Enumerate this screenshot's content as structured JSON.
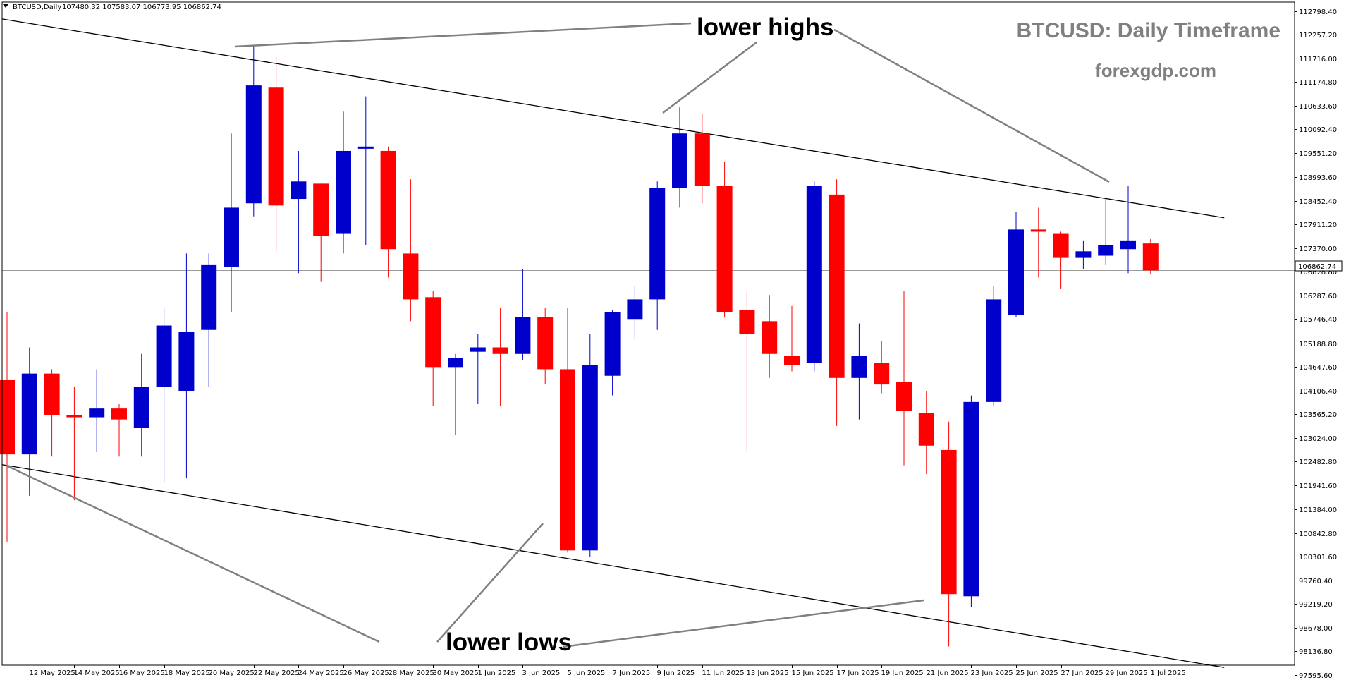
{
  "header": {
    "symbol": "BTCUSD,Daily",
    "ohlc": "107480.32 107583.07 106773.95 106862.74"
  },
  "watermark": {
    "title": "BTCUSD: Daily Timeframe",
    "site": "forexgdp.com",
    "color": "#808080"
  },
  "annotations": {
    "top": "lower highs",
    "bottom": "lower lows"
  },
  "current_price_label": "106862.74",
  "colors": {
    "bull": "#0000cc",
    "bear": "#ff0000",
    "trendline": "#000000",
    "pointer": "#808080"
  },
  "chart_data": {
    "type": "candlestick",
    "title": "BTCUSD: Daily Timeframe",
    "ylim": [
      97595.2,
      112798.4
    ],
    "y_ticks": [
      112798.4,
      112257.2,
      111716.0,
      111174.8,
      110633.6,
      110092.4,
      109551.2,
      108993.6,
      108452.4,
      107911.2,
      107370.0,
      106828.8,
      106287.6,
      105746.4,
      105188.8,
      104647.6,
      104106.4,
      103565.2,
      103024.0,
      102482.8,
      101941.6,
      101384.0,
      100842.8,
      100301.6,
      99760.4,
      99219.2,
      98678.0,
      98136.8,
      97595.6
    ],
    "x_tick_labels": [
      "12 May 2025",
      "14 May 2025",
      "16 May 2025",
      "18 May 2025",
      "20 May 2025",
      "22 May 2025",
      "24 May 2025",
      "26 May 2025",
      "28 May 2025",
      "30 May 2025",
      "1 Jun 2025",
      "3 Jun 2025",
      "5 Jun 2025",
      "7 Jun 2025",
      "9 Jun 2025",
      "11 Jun 2025",
      "13 Jun 2025",
      "15 Jun 2025",
      "17 Jun 2025",
      "19 Jun 2025",
      "21 Jun 2025",
      "23 Jun 2025",
      "25 Jun 2025",
      "27 Jun 2025",
      "29 Jun 2025",
      "1 Jul 2025"
    ],
    "current_price": 106862.74,
    "candles": [
      {
        "date": "11 May 2025",
        "o": 104350,
        "h": 105900,
        "l": 100650,
        "c": 102650
      },
      {
        "date": "12 May 2025",
        "o": 102650,
        "h": 105100,
        "l": 101700,
        "c": 104500
      },
      {
        "date": "13 May 2025",
        "o": 104500,
        "h": 104600,
        "l": 102600,
        "c": 103550
      },
      {
        "date": "14 May 2025",
        "o": 103550,
        "h": 104200,
        "l": 101600,
        "c": 103500
      },
      {
        "date": "15 May 2025",
        "o": 103500,
        "h": 104600,
        "l": 102700,
        "c": 103700
      },
      {
        "date": "16 May 2025",
        "o": 103700,
        "h": 103800,
        "l": 102600,
        "c": 103450
      },
      {
        "date": "17 May 2025",
        "o": 103250,
        "h": 104950,
        "l": 102600,
        "c": 104200
      },
      {
        "date": "18 May 2025",
        "o": 104200,
        "h": 106000,
        "l": 102000,
        "c": 105600
      },
      {
        "date": "19 May 2025",
        "o": 104100,
        "h": 107250,
        "l": 102100,
        "c": 105450
      },
      {
        "date": "20 May 2025",
        "o": 105500,
        "h": 107250,
        "l": 104200,
        "c": 107000
      },
      {
        "date": "21 May 2025",
        "o": 106950,
        "h": 110000,
        "l": 105900,
        "c": 108300
      },
      {
        "date": "22 May 2025",
        "o": 108400,
        "h": 112000,
        "l": 108100,
        "c": 111100
      },
      {
        "date": "23 May 2025",
        "o": 111050,
        "h": 111750,
        "l": 107300,
        "c": 108350
      },
      {
        "date": "24 May 2025",
        "o": 108500,
        "h": 109600,
        "l": 106800,
        "c": 108900
      },
      {
        "date": "25 May 2025",
        "o": 108850,
        "h": 108850,
        "l": 106600,
        "c": 107650
      },
      {
        "date": "26 May 2025",
        "o": 107700,
        "h": 110500,
        "l": 107250,
        "c": 109600
      },
      {
        "date": "27 May 2025",
        "o": 109650,
        "h": 110850,
        "l": 107450,
        "c": 109700
      },
      {
        "date": "28 May 2025",
        "o": 109600,
        "h": 109700,
        "l": 106700,
        "c": 107350
      },
      {
        "date": "29 May 2025",
        "o": 107250,
        "h": 108950,
        "l": 105700,
        "c": 106200
      },
      {
        "date": "30 May 2025",
        "o": 106250,
        "h": 106400,
        "l": 103750,
        "c": 104650
      },
      {
        "date": "31 May 2025",
        "o": 104650,
        "h": 104950,
        "l": 103100,
        "c": 104850
      },
      {
        "date": "1 Jun 2025",
        "o": 105000,
        "h": 105400,
        "l": 103800,
        "c": 105100
      },
      {
        "date": "2 Jun 2025",
        "o": 105100,
        "h": 106000,
        "l": 103750,
        "c": 104950
      },
      {
        "date": "3 Jun 2025",
        "o": 104950,
        "h": 106900,
        "l": 104800,
        "c": 105800
      },
      {
        "date": "4 Jun 2025",
        "o": 105800,
        "h": 106000,
        "l": 104250,
        "c": 104600
      },
      {
        "date": "5 Jun 2025",
        "o": 104600,
        "h": 106000,
        "l": 100400,
        "c": 100450
      },
      {
        "date": "6 Jun 2025",
        "o": 100450,
        "h": 105400,
        "l": 100300,
        "c": 104700
      },
      {
        "date": "7 Jun 2025",
        "o": 104450,
        "h": 105950,
        "l": 104000,
        "c": 105900
      },
      {
        "date": "8 Jun 2025",
        "o": 105750,
        "h": 106500,
        "l": 105300,
        "c": 106200
      },
      {
        "date": "9 Jun 2025",
        "o": 106200,
        "h": 108900,
        "l": 105500,
        "c": 108750
      },
      {
        "date": "10 Jun 2025",
        "o": 108750,
        "h": 110600,
        "l": 108300,
        "c": 110000
      },
      {
        "date": "11 Jun 2025",
        "o": 110000,
        "h": 110450,
        "l": 108400,
        "c": 108800
      },
      {
        "date": "12 Jun 2025",
        "o": 108800,
        "h": 109350,
        "l": 105800,
        "c": 105900
      },
      {
        "date": "13 Jun 2025",
        "o": 105950,
        "h": 106400,
        "l": 102700,
        "c": 105400
      },
      {
        "date": "14 Jun 2025",
        "o": 105700,
        "h": 106300,
        "l": 104400,
        "c": 104950
      },
      {
        "date": "15 Jun 2025",
        "o": 104900,
        "h": 106050,
        "l": 104550,
        "c": 104700
      },
      {
        "date": "16 Jun 2025",
        "o": 104750,
        "h": 108900,
        "l": 104550,
        "c": 108800
      },
      {
        "date": "17 Jun 2025",
        "o": 108600,
        "h": 108950,
        "l": 103300,
        "c": 104400
      },
      {
        "date": "18 Jun 2025",
        "o": 104400,
        "h": 105650,
        "l": 103450,
        "c": 104900
      },
      {
        "date": "19 Jun 2025",
        "o": 104750,
        "h": 105250,
        "l": 104050,
        "c": 104250
      },
      {
        "date": "20 Jun 2025",
        "o": 104300,
        "h": 106400,
        "l": 102400,
        "c": 103650
      },
      {
        "date": "21 Jun 2025",
        "o": 103600,
        "h": 104100,
        "l": 102200,
        "c": 102850
      },
      {
        "date": "22 Jun 2025",
        "o": 102750,
        "h": 103400,
        "l": 98250,
        "c": 99450
      },
      {
        "date": "23 Jun 2025",
        "o": 99400,
        "h": 104000,
        "l": 99150,
        "c": 103850
      },
      {
        "date": "24 Jun 2025",
        "o": 103850,
        "h": 106500,
        "l": 103750,
        "c": 106200
      },
      {
        "date": "25 Jun 2025",
        "o": 105850,
        "h": 108200,
        "l": 105800,
        "c": 107800
      },
      {
        "date": "26 Jun 2025",
        "o": 107800,
        "h": 108300,
        "l": 106700,
        "c": 107750
      },
      {
        "date": "27 Jun 2025",
        "o": 107700,
        "h": 107750,
        "l": 106450,
        "c": 107150
      },
      {
        "date": "28 Jun 2025",
        "o": 107150,
        "h": 107550,
        "l": 106900,
        "c": 107300
      },
      {
        "date": "29 Jun 2025",
        "o": 107200,
        "h": 108500,
        "l": 107000,
        "c": 107450
      },
      {
        "date": "30 Jun 2025",
        "o": 107350,
        "h": 108800,
        "l": 106800,
        "c": 107550
      },
      {
        "date": "1 Jul 2025",
        "o": 107480.32,
        "h": 107583.07,
        "l": 106773.95,
        "c": 106862.74
      }
    ],
    "trendlines": [
      {
        "name": "upper",
        "from": {
          "date": "11 May 2025",
          "y": 112622
        },
        "to": {
          "date": "4 Jul 2025",
          "y": 108068
        }
      },
      {
        "name": "lower",
        "from": {
          "date": "11 May 2025",
          "y": 102414
        },
        "to": {
          "date": "4 Jul 2025",
          "y": 97769
        }
      }
    ]
  }
}
